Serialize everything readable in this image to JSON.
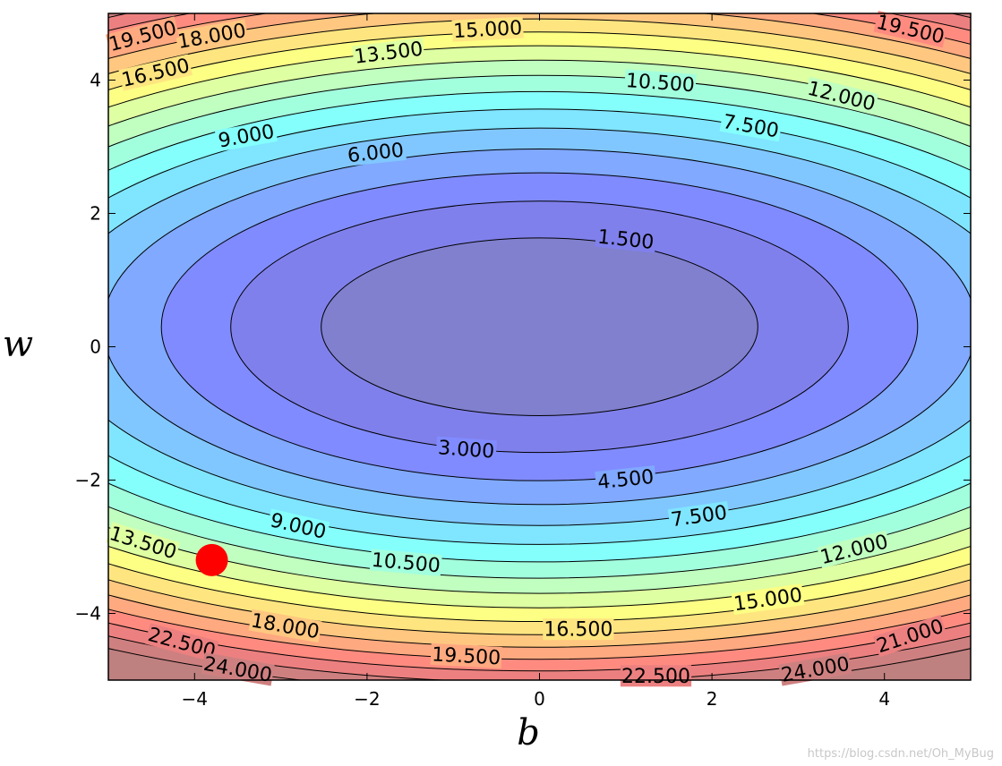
{
  "chart_data": {
    "type": "contour",
    "xlabel": "b",
    "ylabel": "w",
    "xlim": [
      -5,
      5
    ],
    "ylim": [
      -5,
      5
    ],
    "x_ticks": [
      -4,
      -2,
      0,
      2,
      4
    ],
    "x_tick_labels": [
      "−4",
      "−2",
      "0",
      "2",
      "4"
    ],
    "y_ticks": [
      -4,
      -2,
      0,
      2,
      4
    ],
    "y_tick_labels": [
      "−4",
      "−2",
      "0",
      "2",
      "4"
    ],
    "levels": [
      0,
      1.5,
      3,
      4.5,
      6,
      7.5,
      9,
      10.5,
      12,
      13.5,
      15,
      16.5,
      18,
      19.5,
      21,
      22.5,
      24,
      25.5
    ],
    "function": {
      "center_b": 0,
      "center_w": 0.3,
      "coef_b": 0.234,
      "coef_w": 0.844
    },
    "colormap": [
      "#00007f",
      "#0000ff",
      "#0080ff",
      "#00ffff",
      "#80ff80",
      "#ffff00",
      "#ff8000",
      "#ff0000",
      "#7f0000"
    ],
    "fill_opacity": 0.5,
    "contour_labels": [
      {
        "text": "1.500",
        "b": 1.0,
        "w": 1.6,
        "angle": 6
      },
      {
        "text": "3.000",
        "b": -0.85,
        "w": -1.55,
        "angle": 4
      },
      {
        "text": "4.500",
        "b": 1.0,
        "w": -2.0,
        "angle": -6
      },
      {
        "text": "6.000",
        "b": -1.9,
        "w": 2.9,
        "angle": -6
      },
      {
        "text": "7.500",
        "b": 2.45,
        "w": 3.3,
        "angle": 10
      },
      {
        "text": "7.500",
        "b": 1.85,
        "w": -2.55,
        "angle": -8
      },
      {
        "text": "9.000",
        "b": -3.4,
        "w": 3.15,
        "angle": -10
      },
      {
        "text": "9.000",
        "b": -2.8,
        "w": -2.7,
        "angle": 13
      },
      {
        "text": "10.500",
        "b": 1.4,
        "w": 3.95,
        "angle": 4
      },
      {
        "text": "10.500",
        "b": -1.55,
        "w": -3.25,
        "angle": 5
      },
      {
        "text": "12.000",
        "b": 3.5,
        "w": 3.75,
        "angle": 14
      },
      {
        "text": "12.000",
        "b": 3.65,
        "w": -3.05,
        "angle": -14
      },
      {
        "text": "13.500",
        "b": -1.75,
        "w": 4.4,
        "angle": -7
      },
      {
        "text": "13.500",
        "b": -4.6,
        "w": -2.95,
        "angle": 17
      },
      {
        "text": "15.000",
        "b": -0.6,
        "w": 4.75,
        "angle": -3
      },
      {
        "text": "15.000",
        "b": 2.65,
        "w": -3.8,
        "angle": -8
      },
      {
        "text": "16.500",
        "b": -4.45,
        "w": 4.1,
        "angle": -13
      },
      {
        "text": "16.500",
        "b": 0.45,
        "w": -4.25,
        "angle": 0
      },
      {
        "text": "18.000",
        "b": -3.8,
        "w": 4.65,
        "angle": -10
      },
      {
        "text": "18.000",
        "b": -2.95,
        "w": -4.2,
        "angle": 10
      },
      {
        "text": "19.500",
        "b": -4.6,
        "w": 4.65,
        "angle": -15
      },
      {
        "text": "19.500",
        "b": -0.85,
        "w": -4.65,
        "angle": 3
      },
      {
        "text": "19.500",
        "b": 4.3,
        "w": 4.75,
        "angle": 13
      },
      {
        "text": "21.000",
        "b": 4.3,
        "w": -4.35,
        "angle": -18
      },
      {
        "text": "22.500",
        "b": -4.15,
        "w": -4.45,
        "angle": 15
      },
      {
        "text": "22.500",
        "b": 1.35,
        "w": -4.95,
        "angle": 0
      },
      {
        "text": "24.000",
        "b": -3.5,
        "w": -4.85,
        "angle": 10
      },
      {
        "text": "24.000",
        "b": 3.2,
        "w": -4.85,
        "angle": -10
      }
    ],
    "points": [
      {
        "b": -3.8,
        "w": -3.2,
        "color": "#ff0000"
      }
    ]
  },
  "watermark": "https://blog.csdn.net/Oh_MyBug"
}
